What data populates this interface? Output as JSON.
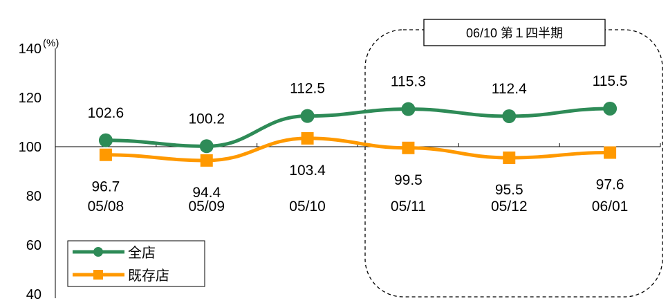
{
  "chart_data": {
    "type": "line",
    "categories": [
      "05/08",
      "05/09",
      "05/10",
      "05/11",
      "05/12",
      "06/01"
    ],
    "series": [
      {
        "name": "全店",
        "color": "#2E8B57",
        "marker": "circle",
        "values": [
          102.6,
          100.2,
          112.5,
          115.3,
          112.4,
          115.5
        ],
        "labels": [
          "102.6",
          "100.2",
          "112.5",
          "115.3",
          "112.4",
          "115.5"
        ]
      },
      {
        "name": "既存店",
        "color": "#FF9900",
        "marker": "square",
        "values": [
          96.7,
          94.4,
          103.4,
          99.5,
          95.5,
          97.6
        ],
        "labels": [
          "96.7",
          "94.4",
          "103.4",
          "99.5",
          "95.5",
          "97.6"
        ]
      }
    ],
    "y_unit": "(%)",
    "ylim": [
      40,
      140
    ],
    "y_ticks": [
      40,
      60,
      80,
      100,
      120,
      140
    ],
    "y_tick_labels": [
      "40",
      "60",
      "80",
      "100",
      "120",
      "140"
    ],
    "x_axis_at": 100,
    "annotation": "06/10 第１四半期",
    "legend_position": "bottom-left"
  }
}
